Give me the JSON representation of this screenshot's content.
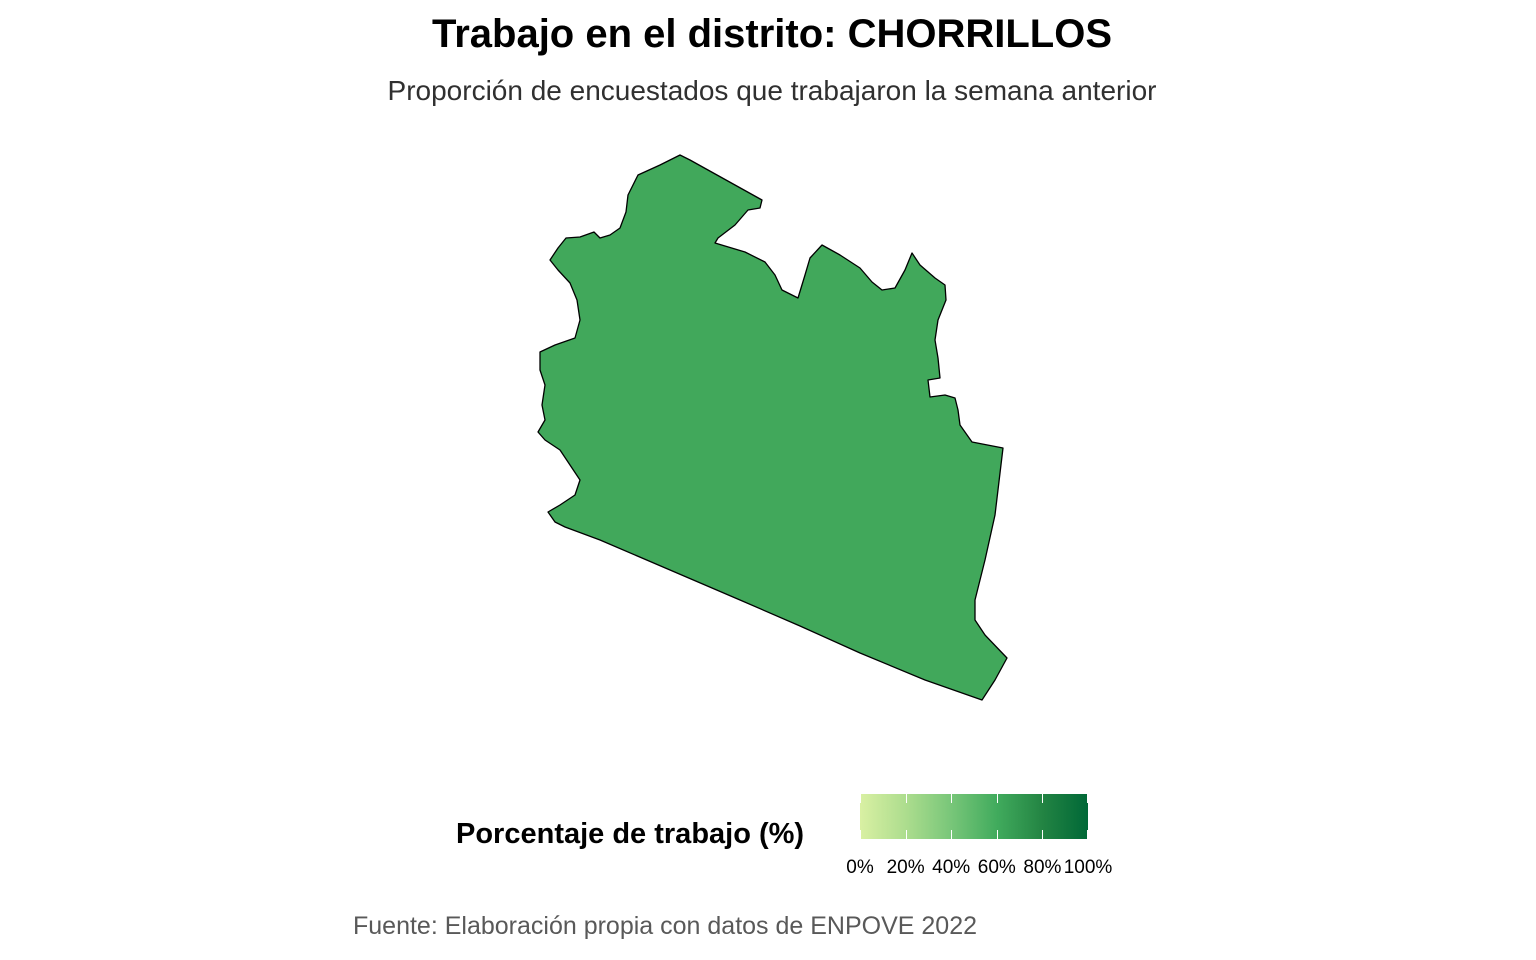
{
  "title": "Trabajo en el distrito: CHORRILLOS",
  "subtitle": "Proporción de encuestados que trabajaron la semana anterior",
  "map": {
    "district": "CHORRILLOS",
    "fill_color": "#41a85b",
    "stroke_color": "#000000",
    "value_percent": 60
  },
  "legend": {
    "title": "Porcentaje de trabajo (%)",
    "scale_colors": [
      "#d9f0a3",
      "#addd8e",
      "#78c679",
      "#41ab5d",
      "#238443",
      "#006837"
    ],
    "range": [
      0,
      100
    ],
    "ticks": [
      {
        "value": 0,
        "label": "0%"
      },
      {
        "value": 20,
        "label": "20%"
      },
      {
        "value": 40,
        "label": "40%"
      },
      {
        "value": 60,
        "label": "60%"
      },
      {
        "value": 80,
        "label": "80%"
      },
      {
        "value": 100,
        "label": "100%"
      }
    ]
  },
  "caption": "Fuente: Elaboración propia con datos de ENPOVE 2022"
}
